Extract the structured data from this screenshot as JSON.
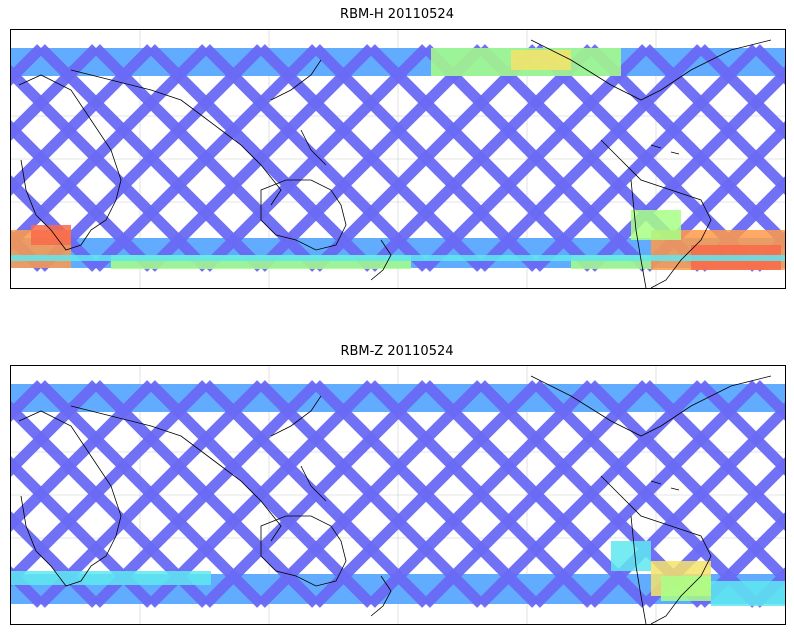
{
  "figure": {
    "panels": [
      {
        "title": "RBM-H 20110524",
        "colormap": [
          "#6a6af5",
          "#5aa8ff",
          "#5fe8f0",
          "#a8ff86",
          "#f6e36a",
          "#ff9a4a",
          "#f86a4a"
        ],
        "hot_regions": [
          "south-america-east-south-atlantic",
          "southern-indian-ocean-west",
          "north-atlantic-band"
        ]
      },
      {
        "title": "RBM-Z 20110524",
        "colormap": [
          "#6a6af5",
          "#5aa8ff",
          "#5fe8f0",
          "#a8ff86",
          "#f6e36a"
        ],
        "hot_regions": [
          "south-america-east-south-atlantic"
        ]
      }
    ],
    "swath_color": "#6a6af5",
    "coastline_color": "#000000",
    "grid_color": "#cccccc"
  }
}
